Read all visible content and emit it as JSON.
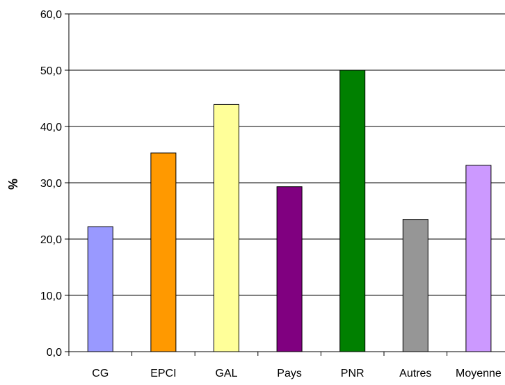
{
  "chart_data": {
    "type": "bar",
    "title": "",
    "xlabel": "",
    "ylabel": "%",
    "ylim": [
      0,
      60
    ],
    "yticks": [
      "0,0",
      "10,0",
      "20,0",
      "30,0",
      "40,0",
      "50,0",
      "60,0"
    ],
    "categories": [
      "CG",
      "EPCI",
      "GAL",
      "Pays",
      "PNR",
      "Autres",
      "Moyenne"
    ],
    "values": [
      22.2,
      35.3,
      43.9,
      29.3,
      50.0,
      23.5,
      33.1
    ],
    "colors": [
      "#9999ff",
      "#ff9900",
      "#ffff99",
      "#800080",
      "#008000",
      "#969696",
      "#cc99ff"
    ],
    "grid": true,
    "legend": "none"
  }
}
